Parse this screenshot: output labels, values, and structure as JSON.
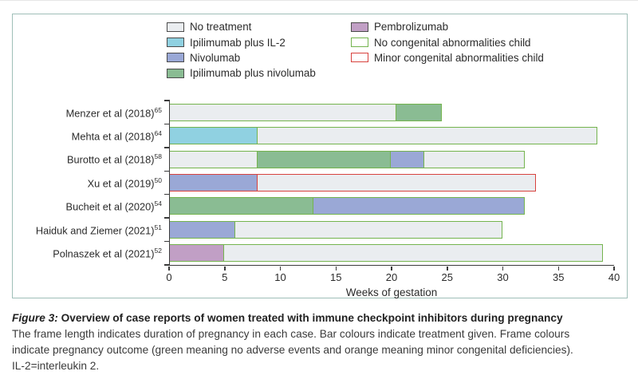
{
  "legend": {
    "left": [
      {
        "label": "No treatment",
        "swatch_fill": "#eaedf0",
        "swatch_border": "#4b4b4b"
      },
      {
        "label": "Ipilimumab plus IL-2",
        "swatch_fill": "#90d1e1",
        "swatch_border": "#4b4b4b"
      },
      {
        "label": "Nivolumab",
        "swatch_fill": "#9aa8d6",
        "swatch_border": "#4b4b4b"
      },
      {
        "label": "Ipilimumab plus nivolumab",
        "swatch_fill": "#8abc93",
        "swatch_border": "#4b4b4b"
      }
    ],
    "right": [
      {
        "label": "Pembrolizumab",
        "swatch_fill": "#c19fc5",
        "swatch_border": "#4b4b4b"
      },
      {
        "label": "No congenital abnormalities child",
        "swatch_fill": "#ffffff",
        "swatch_border": "#74b44e"
      },
      {
        "label": "Minor congenital abnormalities child",
        "swatch_fill": "#ffffff",
        "swatch_border": "#d8423e"
      }
    ]
  },
  "chart_data": {
    "type": "bar",
    "orientation": "horizontal",
    "stacked": true,
    "xlabel": "Weeks of gestation",
    "xlim": [
      0,
      40
    ],
    "xticks": [
      0,
      5,
      10,
      15,
      20,
      25,
      30,
      35,
      40
    ],
    "grid": false,
    "treatment_colors": {
      "No treatment": "#eaedf0",
      "Ipilimumab plus IL-2": "#90d1e1",
      "Nivolumab": "#9aa8d6",
      "Ipilimumab plus nivolumab": "#8abc93",
      "Pembrolizumab": "#c19fc5"
    },
    "outcome_frame_colors": {
      "No congenital abnormalities child": "#74b44e",
      "Minor congenital abnormalities child": "#d8423e"
    },
    "rows": [
      {
        "study": "Menzer et al (2018)",
        "ref": "65",
        "outcome": "No congenital abnormalities child",
        "segments": [
          {
            "treatment": "No treatment",
            "from": 0,
            "to": 20.5
          },
          {
            "treatment": "Ipilimumab plus nivolumab",
            "from": 20.5,
            "to": 24.5
          }
        ]
      },
      {
        "study": "Mehta et al (2018)",
        "ref": "64",
        "outcome": "No congenital abnormalities child",
        "segments": [
          {
            "treatment": "Ipilimumab plus IL-2",
            "from": 0,
            "to": 8
          },
          {
            "treatment": "No treatment",
            "from": 8,
            "to": 38.5
          }
        ]
      },
      {
        "study": "Burotto et al (2018)",
        "ref": "58",
        "outcome": "No congenital abnormalities child",
        "segments": [
          {
            "treatment": "No treatment",
            "from": 0,
            "to": 8
          },
          {
            "treatment": "Ipilimumab plus nivolumab",
            "from": 8,
            "to": 20
          },
          {
            "treatment": "Nivolumab",
            "from": 20,
            "to": 23
          },
          {
            "treatment": "No treatment",
            "from": 23,
            "to": 32
          }
        ]
      },
      {
        "study": "Xu et al (2019)",
        "ref": "50",
        "outcome": "Minor congenital abnormalities child",
        "segments": [
          {
            "treatment": "Nivolumab",
            "from": 0,
            "to": 8
          },
          {
            "treatment": "No treatment",
            "from": 8,
            "to": 33
          }
        ]
      },
      {
        "study": "Bucheit et al (2020)",
        "ref": "54",
        "outcome": "No congenital abnormalities child",
        "segments": [
          {
            "treatment": "Ipilimumab plus nivolumab",
            "from": 0,
            "to": 13
          },
          {
            "treatment": "Nivolumab",
            "from": 13,
            "to": 32
          }
        ]
      },
      {
        "study": "Haiduk and Ziemer (2021)",
        "ref": "51",
        "outcome": "No congenital abnormalities child",
        "segments": [
          {
            "treatment": "Nivolumab",
            "from": 0,
            "to": 6
          },
          {
            "treatment": "No treatment",
            "from": 6,
            "to": 30
          }
        ]
      },
      {
        "study": "Polnaszek et al (2021)",
        "ref": "52",
        "outcome": "No congenital abnormalities child",
        "segments": [
          {
            "treatment": "Pembrolizumab",
            "from": 0,
            "to": 5
          },
          {
            "treatment": "No treatment",
            "from": 5,
            "to": 39
          }
        ]
      }
    ]
  },
  "caption": {
    "figure_label": "Figure 3:",
    "title": " Overview of case reports of women treated with immune checkpoint inhibitors during pregnancy",
    "line2": "The frame length indicates duration of pregnancy in each case. Bar colours indicate treatment given. Frame colours",
    "line3": "indicate pregnancy outcome (green meaning no adverse events and orange meaning minor congenital deficiencies).",
    "line4": "IL-2=interleukin 2."
  },
  "colors": {
    "panel_border": "#9fbfb8",
    "axis": "#3b3b3b",
    "text": "#2b2b2b"
  }
}
